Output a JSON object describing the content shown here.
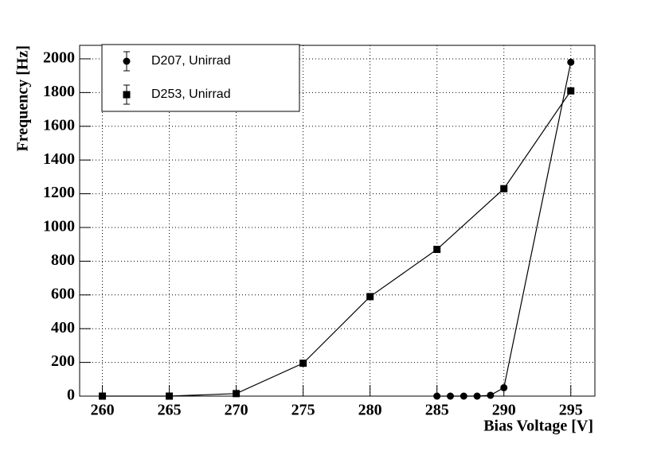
{
  "chart_data": {
    "type": "line",
    "x_label": "Bias Voltage [V]",
    "y_label": "Frequency [Hz]",
    "xlim": [
      258.3,
      296.8
    ],
    "ylim": [
      0,
      2080
    ],
    "xticks": [
      260,
      265,
      270,
      275,
      280,
      285,
      290,
      295
    ],
    "yticks": [
      0,
      200,
      400,
      600,
      800,
      1000,
      1200,
      1400,
      1600,
      1800,
      2000
    ],
    "grid": true,
    "legend": "top-left",
    "series": [
      {
        "name": "D207, Unirrad",
        "color": "#000000",
        "marker": "circle",
        "x": [
          285,
          286,
          287,
          288,
          289,
          290,
          295
        ],
        "values": [
          0,
          0,
          0,
          0,
          5,
          50,
          1980
        ]
      },
      {
        "name": "D253, Unirrad",
        "color": "#000000",
        "marker": "square",
        "x": [
          260,
          265,
          270,
          275,
          280,
          285,
          290,
          295
        ],
        "values": [
          0,
          0,
          15,
          195,
          590,
          870,
          1230,
          1810
        ]
      }
    ]
  }
}
